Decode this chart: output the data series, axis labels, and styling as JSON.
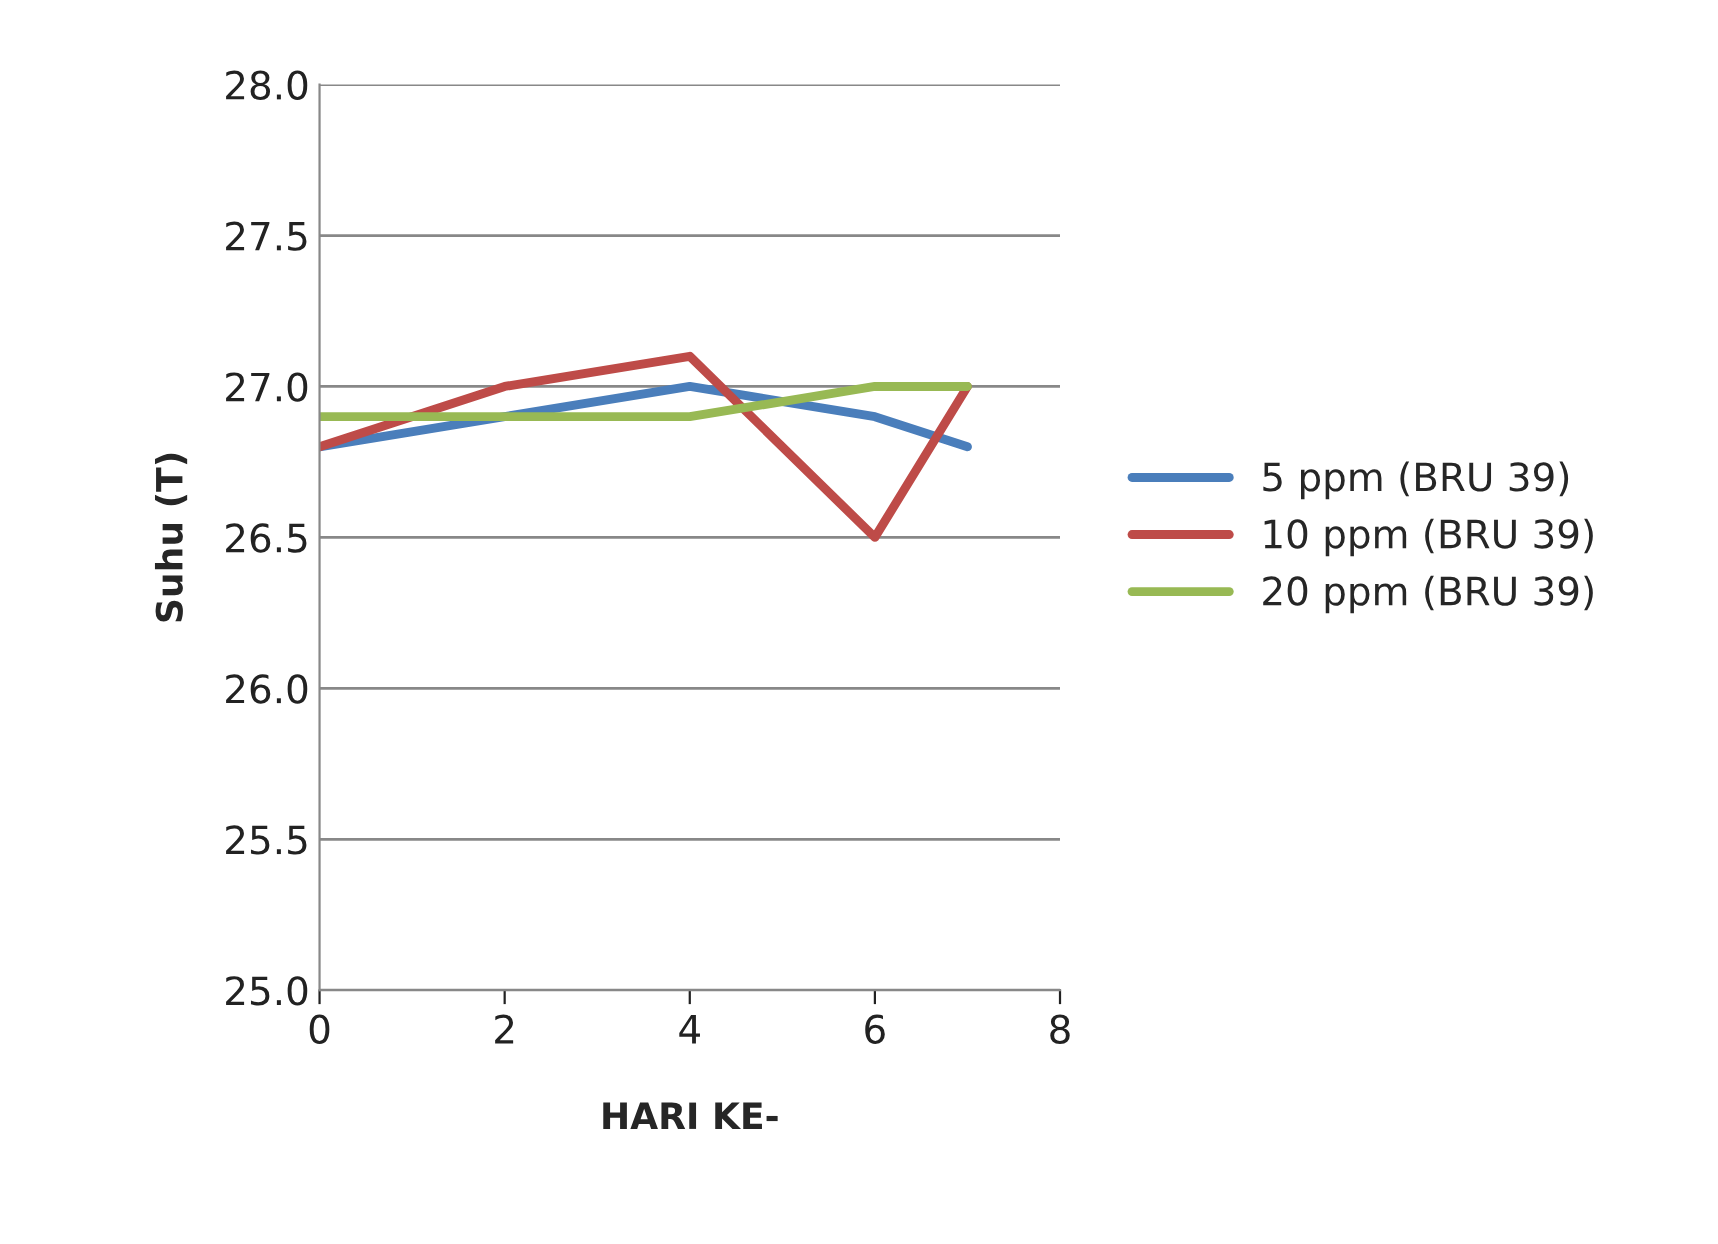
{
  "chart_data": {
    "type": "line",
    "xlabel": "HARI KE-",
    "ylabel": "Suhu (T)",
    "x": [
      0,
      2,
      4,
      6,
      7
    ],
    "series": [
      {
        "name": "5 ppm (BRU 39)",
        "color": "#4a7ebb",
        "values": [
          26.8,
          26.9,
          27.0,
          26.9,
          26.8
        ]
      },
      {
        "name": "10 ppm (BRU 39)",
        "color": "#be4b48",
        "values": [
          26.8,
          27.0,
          27.1,
          26.5,
          27.0
        ]
      },
      {
        "name": "20 ppm (BRU 39)",
        "color": "#98b954",
        "values": [
          26.9,
          26.9,
          26.9,
          27.0,
          27.0
        ]
      }
    ],
    "xlim": [
      0,
      8
    ],
    "xticks": [
      0,
      2,
      4,
      6,
      8
    ],
    "ylim": [
      25.0,
      28.0
    ],
    "yticks": [
      {
        "value": 25.0,
        "label": "25.0"
      },
      {
        "value": 25.5,
        "label": "25.5"
      },
      {
        "value": 26.0,
        "label": "26.0"
      },
      {
        "value": 26.5,
        "label": "26.5"
      },
      {
        "value": 27.0,
        "label": "27.0"
      },
      {
        "value": 27.5,
        "label": "27.5"
      },
      {
        "value": 28.0,
        "label": "28.0"
      }
    ],
    "grid": "y",
    "legend": "right",
    "marker": "none",
    "line_style": "solid"
  }
}
